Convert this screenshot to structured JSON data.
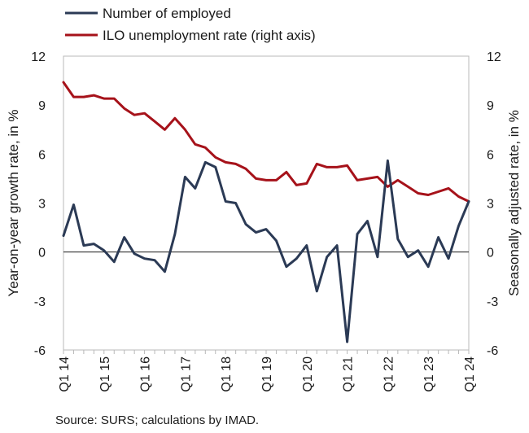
{
  "chart_data": {
    "type": "line",
    "categories": [
      "Q1 14",
      "Q2 14",
      "Q3 14",
      "Q4 14",
      "Q1 15",
      "Q2 15",
      "Q3 15",
      "Q4 15",
      "Q1 16",
      "Q2 16",
      "Q3 16",
      "Q4 16",
      "Q1 17",
      "Q2 17",
      "Q3 17",
      "Q4 17",
      "Q1 18",
      "Q2 18",
      "Q3 18",
      "Q4 18",
      "Q1 19",
      "Q2 19",
      "Q3 19",
      "Q4 19",
      "Q1 20",
      "Q2 20",
      "Q3 20",
      "Q4 20",
      "Q1 21",
      "Q2 21",
      "Q3 21",
      "Q4 21",
      "Q1 22",
      "Q2 22",
      "Q3 22",
      "Q4 22",
      "Q1 23",
      "Q2 23",
      "Q3 23",
      "Q4 23",
      "Q1 24"
    ],
    "x_tick_labels": [
      "Q1 14",
      "Q1 15",
      "Q1 16",
      "Q1 17",
      "Q1 18",
      "Q1 19",
      "Q1 20",
      "Q1 21",
      "Q1 22",
      "Q1 23",
      "Q1 24"
    ],
    "series": [
      {
        "name": "Number of employed",
        "axis": "left",
        "color": "#2b3a55",
        "values": [
          1.0,
          2.9,
          0.4,
          0.5,
          0.1,
          -0.6,
          0.9,
          -0.1,
          -0.4,
          -0.5,
          -1.2,
          1.1,
          4.6,
          3.9,
          5.5,
          5.2,
          3.1,
          3.0,
          1.7,
          1.2,
          1.4,
          0.7,
          -0.9,
          -0.4,
          0.4,
          -2.4,
          -0.3,
          0.4,
          -5.5,
          1.1,
          1.9,
          -0.3,
          5.6,
          0.8,
          -0.3,
          0.1,
          -0.9,
          0.9,
          -0.4,
          1.6,
          3.1
        ]
      },
      {
        "name": "ILO unemployment rate (right axis)",
        "axis": "right",
        "color": "#a6121a",
        "values": [
          10.4,
          9.5,
          9.5,
          9.6,
          9.4,
          9.4,
          8.8,
          8.4,
          8.5,
          8.0,
          7.5,
          8.2,
          7.5,
          6.6,
          6.4,
          5.8,
          5.5,
          5.4,
          5.1,
          4.5,
          4.4,
          4.4,
          4.9,
          4.1,
          4.2,
          5.4,
          5.2,
          5.2,
          5.3,
          4.4,
          4.5,
          4.6,
          4.0,
          4.4,
          4.0,
          3.6,
          3.5,
          3.7,
          3.9,
          3.4,
          3.1
        ]
      }
    ],
    "left_axis": {
      "label": "Year-on-year growth rate, in %",
      "ylim": [
        -6,
        12
      ],
      "ticks": [
        "12",
        "9",
        "6",
        "3",
        "0",
        "-3",
        "-6"
      ]
    },
    "right_axis": {
      "label": "Seasonally adjusted rate, in %",
      "ylim": [
        -6,
        12
      ],
      "ticks": [
        "12",
        "9",
        "6",
        "3",
        "0",
        "-3",
        "-6"
      ]
    },
    "legend_placement": "top-left",
    "grid": false,
    "source": "Source: SURS; calculations by IMAD."
  }
}
